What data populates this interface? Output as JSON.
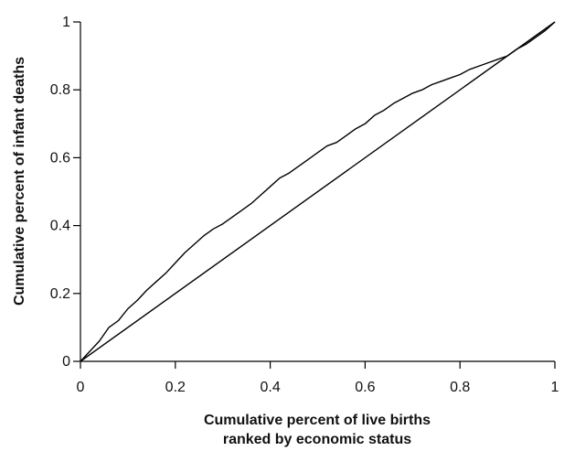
{
  "chart_data": {
    "type": "line",
    "title": "",
    "xlabel_line1": "Cumulative percent of live births",
    "xlabel_line2": "ranked by economic status",
    "ylabel": "Cumulative percent of infant deaths",
    "xlim": [
      0,
      1
    ],
    "ylim": [
      0,
      1
    ],
    "grid": false,
    "legend": "none",
    "x_ticks": [
      {
        "value": 0,
        "label": "0"
      },
      {
        "value": 0.2,
        "label": "0.2"
      },
      {
        "value": 0.4,
        "label": "0.4"
      },
      {
        "value": 0.6,
        "label": "0.6"
      },
      {
        "value": 0.8,
        "label": "0.8"
      },
      {
        "value": 1,
        "label": "1"
      }
    ],
    "y_ticks": [
      {
        "value": 0,
        "label": "0"
      },
      {
        "value": 0.2,
        "label": "0.2"
      },
      {
        "value": 0.4,
        "label": "0.4"
      },
      {
        "value": 0.6,
        "label": "0.6"
      },
      {
        "value": 0.8,
        "label": "0.8"
      },
      {
        "value": 1,
        "label": "1"
      }
    ],
    "series": [
      {
        "x": [
          0,
          0.02,
          0.04,
          0.06,
          0.08,
          0.1,
          0.12,
          0.14,
          0.16,
          0.18,
          0.2,
          0.22,
          0.24,
          0.26,
          0.28,
          0.3,
          0.32,
          0.34,
          0.36,
          0.38,
          0.4,
          0.42,
          0.44,
          0.46,
          0.48,
          0.5,
          0.52,
          0.54,
          0.56,
          0.58,
          0.6,
          0.62,
          0.64,
          0.66,
          0.68,
          0.7,
          0.72,
          0.74,
          0.76,
          0.78,
          0.8,
          0.82,
          0.84,
          0.86,
          0.88,
          0.9,
          0.92,
          0.94,
          0.96,
          0.98,
          1
        ],
        "y": [
          0,
          0.03,
          0.06,
          0.1,
          0.12,
          0.155,
          0.18,
          0.21,
          0.235,
          0.26,
          0.29,
          0.32,
          0.345,
          0.37,
          0.39,
          0.405,
          0.425,
          0.445,
          0.465,
          0.49,
          0.515,
          0.54,
          0.555,
          0.575,
          0.595,
          0.615,
          0.635,
          0.645,
          0.665,
          0.685,
          0.7,
          0.725,
          0.74,
          0.76,
          0.775,
          0.79,
          0.8,
          0.815,
          0.825,
          0.835,
          0.845,
          0.86,
          0.87,
          0.88,
          0.89,
          0.9,
          0.92,
          0.935,
          0.955,
          0.975,
          1
        ]
      },
      {
        "x": [
          0,
          1
        ],
        "y": [
          0,
          1
        ]
      }
    ]
  }
}
